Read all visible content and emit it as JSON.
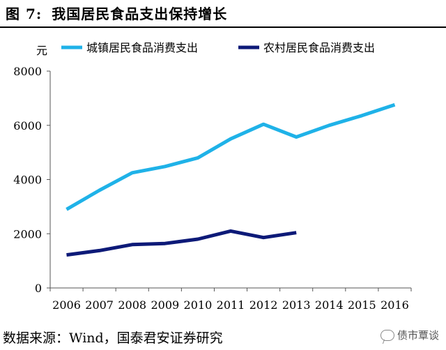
{
  "figure": {
    "number_label": "图 7:",
    "title": "我国居民食品支出保持增长"
  },
  "source_note": "数据来源：Wind，国泰君安证券研究",
  "watermark": "债市覃谈",
  "chart_data": {
    "type": "line",
    "title": "我国居民食品支出保持增长",
    "ylabel": "元",
    "xlabel": "",
    "ylim": [
      0,
      8000
    ],
    "yticks": [
      0,
      2000,
      4000,
      6000,
      8000
    ],
    "grid": false,
    "legend_position": "top",
    "categories": [
      "2006",
      "2007",
      "2008",
      "2009",
      "2010",
      "2011",
      "2012",
      "2013",
      "2014",
      "2015",
      "2016"
    ],
    "series": [
      {
        "name": "城镇居民食品消费支出",
        "color": "#1fb2e8",
        "values": [
          2900,
          3600,
          4250,
          4480,
          4800,
          5500,
          6040,
          5570,
          6000,
          6360,
          6760
        ]
      },
      {
        "name": "农村居民食品消费支出",
        "color": "#0d1a78",
        "values": [
          1220,
          1380,
          1600,
          1640,
          1800,
          2100,
          1860,
          2040,
          null,
          null,
          null
        ]
      }
    ]
  }
}
